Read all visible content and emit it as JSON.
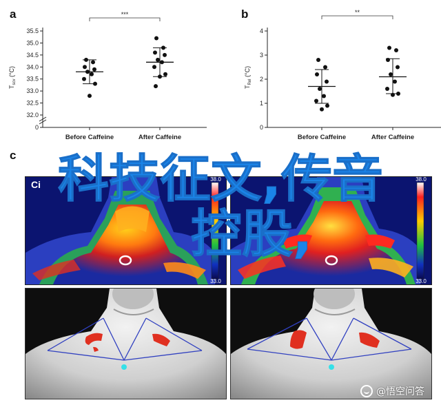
{
  "panels": {
    "a_letter": "a",
    "b_letter": "b",
    "c_letter": "c"
  },
  "chart_data": [
    {
      "type": "scatter",
      "panel": "a",
      "title": "",
      "ylabel": "Tscv (°C)",
      "ylabel_main": "T",
      "ylabel_sub": "scv",
      "ylabel_unit": "(°C)",
      "categories": [
        "Before Caffeine",
        "After Caffeine"
      ],
      "ylim": [
        32.0,
        35.5
      ],
      "yticks": [
        "35.5",
        "35.0",
        "34.5",
        "34.0",
        "33.5",
        "33.0",
        "32.5",
        "32.0",
        "0"
      ],
      "axis_break": true,
      "significance": "***",
      "groups": [
        {
          "name": "Before Caffeine",
          "mean": 33.8,
          "sd_low": 33.3,
          "sd_high": 34.3,
          "points": [
            34.3,
            34.2,
            34.0,
            33.9,
            33.8,
            33.7,
            33.5,
            33.3,
            32.8
          ]
        },
        {
          "name": "After Caffeine",
          "mean": 34.2,
          "sd_low": 33.6,
          "sd_high": 34.8,
          "points": [
            35.2,
            34.8,
            34.6,
            34.5,
            34.3,
            34.2,
            34.0,
            33.7,
            33.6,
            33.2
          ]
        }
      ]
    },
    {
      "type": "scatter",
      "panel": "b",
      "title": "",
      "ylabel": "TRel (°C)",
      "ylabel_main": "T",
      "ylabel_sub": "Rel",
      "ylabel_unit": "(°C)",
      "categories": [
        "Before Caffeine",
        "After Caffeine"
      ],
      "ylim": [
        0,
        4
      ],
      "yticks": [
        "4",
        "3",
        "2",
        "1",
        "0"
      ],
      "significance": "**",
      "groups": [
        {
          "name": "Before Caffeine",
          "mean": 1.7,
          "sd_low": 1.0,
          "sd_high": 2.4,
          "points": [
            2.8,
            2.5,
            2.2,
            1.9,
            1.6,
            1.3,
            1.1,
            0.9,
            0.75
          ]
        },
        {
          "name": "After Caffeine",
          "mean": 2.1,
          "sd_low": 1.4,
          "sd_high": 2.85,
          "points": [
            3.3,
            3.2,
            2.8,
            2.5,
            2.2,
            1.9,
            1.6,
            1.4,
            1.35
          ]
        }
      ]
    }
  ],
  "thermal_images": [
    {
      "label": "Ci",
      "scale_max": "38.0",
      "scale_min": "33.0"
    },
    {
      "label": "",
      "scale_max": "38.0",
      "scale_min": "33.0"
    }
  ],
  "overlay_text": {
    "line1": "科技征文,传音",
    "line2": "控股,"
  },
  "watermark": {
    "text": "@悟空问答"
  },
  "colors": {
    "overlay_blue": "#1a84e8",
    "marker_red": "#e03020",
    "marker_cyan": "#35e0e8",
    "line_blue": "#3040c0"
  }
}
